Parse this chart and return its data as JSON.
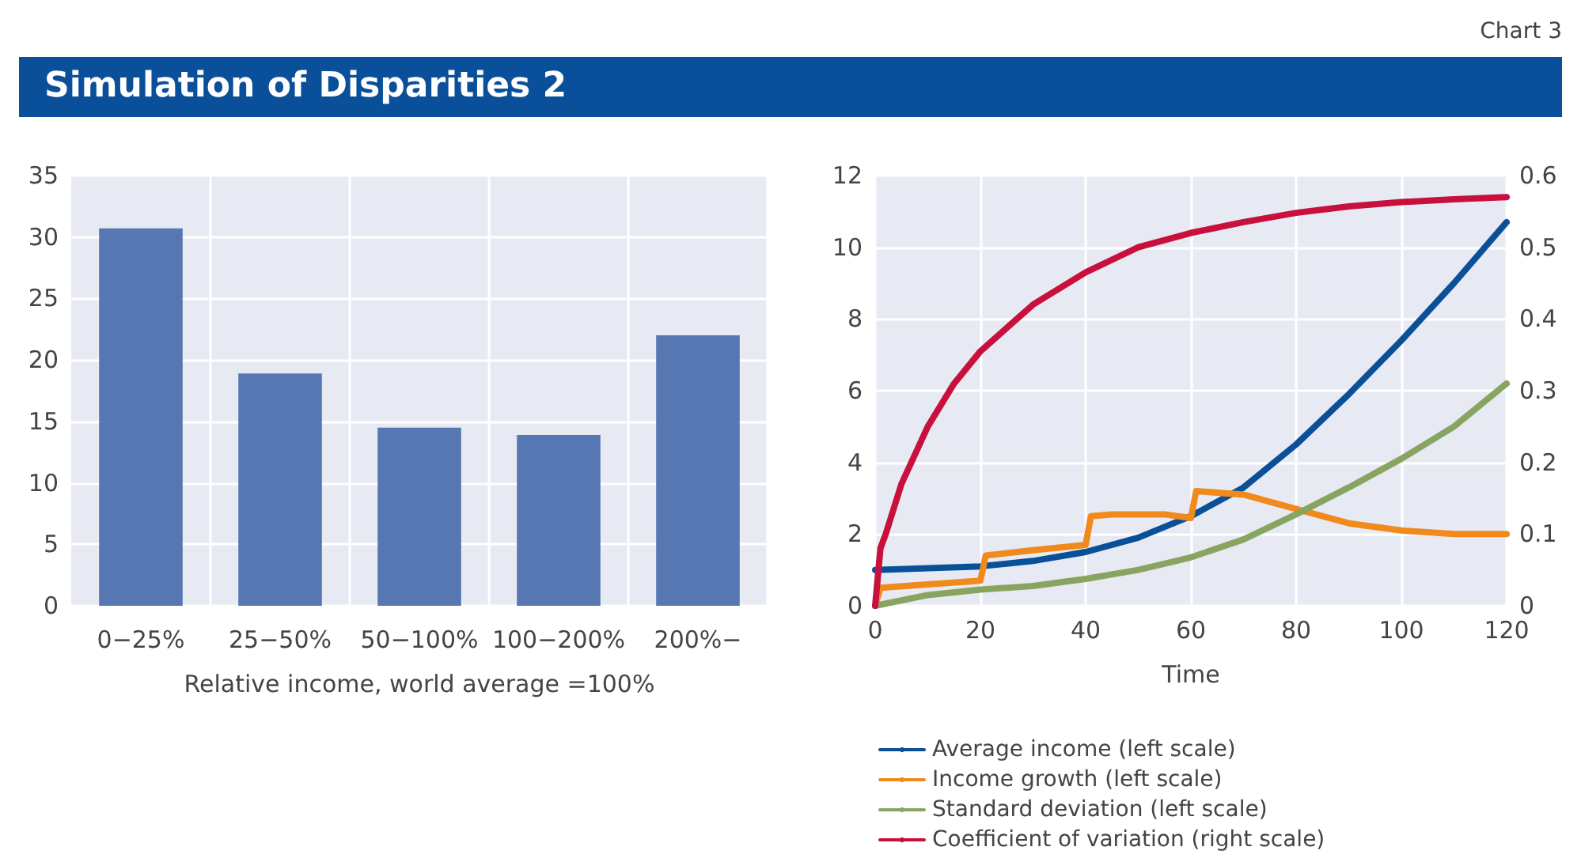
{
  "chart_data": [
    {
      "type": "bar",
      "title": "Simulation of Disparities 2",
      "annotations": [
        "Chart 3"
      ],
      "categories": [
        "0−25%",
        "25−50%",
        "50−100%",
        "100−200%",
        "200%−"
      ],
      "values": [
        30.7,
        18.9,
        14.5,
        13.9,
        22.0
      ],
      "color": "#5677b1",
      "xlabel": "Relative income, world average =100%",
      "ylim": [
        0,
        35
      ],
      "yticks": [
        0,
        5,
        10,
        15,
        20,
        25,
        30,
        35
      ],
      "grid": true,
      "legend": false
    },
    {
      "type": "line",
      "xlabel": "Time",
      "xlim": [
        0,
        120
      ],
      "xticks": [
        0,
        20,
        40,
        60,
        80,
        100,
        120
      ],
      "ylim": [
        0,
        12
      ],
      "yticks": [
        0,
        2,
        4,
        6,
        8,
        10,
        12
      ],
      "y2lim": [
        0,
        0.6
      ],
      "y2ticks": [
        0,
        0.1,
        0.2,
        0.3,
        0.4,
        0.5,
        0.6
      ],
      "grid": true,
      "legend": "bottom",
      "marker": "none",
      "line_style": "solid",
      "series": [
        {
          "name": "Average income (left scale)",
          "color": "#0a5099",
          "x": [
            0,
            10,
            20,
            30,
            40,
            50,
            60,
            70,
            80,
            90,
            100,
            110,
            120
          ],
          "values": [
            1.0,
            1.05,
            1.1,
            1.25,
            1.5,
            1.9,
            2.5,
            3.3,
            4.5,
            5.9,
            7.4,
            9.0,
            10.7
          ]
        },
        {
          "name": "Income growth (left scale)",
          "color": "#f08a1c",
          "x": [
            0,
            1,
            20,
            21,
            30,
            40,
            41,
            45,
            55,
            60,
            61,
            70,
            80,
            90,
            100,
            110,
            120
          ],
          "values": [
            0,
            0.5,
            0.7,
            1.4,
            1.55,
            1.7,
            2.5,
            2.55,
            2.55,
            2.45,
            3.2,
            3.1,
            2.7,
            2.3,
            2.1,
            2.0,
            2.0
          ]
        },
        {
          "name": "Standard deviation (left scale)",
          "color": "#87a561",
          "x": [
            0,
            10,
            20,
            30,
            40,
            50,
            60,
            70,
            80,
            90,
            100,
            110,
            120
          ],
          "values": [
            0,
            0.3,
            0.45,
            0.55,
            0.75,
            1.0,
            1.35,
            1.85,
            2.55,
            3.3,
            4.1,
            5.0,
            6.2
          ]
        },
        {
          "name": "Coefficient of variation (right scale)",
          "color": "#c8103c",
          "axis": "y2",
          "x": [
            0,
            1,
            2,
            5,
            10,
            15,
            20,
            30,
            40,
            50,
            60,
            70,
            80,
            90,
            100,
            110,
            120
          ],
          "values": [
            0,
            0.08,
            0.1,
            0.17,
            0.25,
            0.31,
            0.355,
            0.42,
            0.465,
            0.5,
            0.52,
            0.535,
            0.548,
            0.557,
            0.563,
            0.567,
            0.57
          ]
        }
      ]
    }
  ]
}
